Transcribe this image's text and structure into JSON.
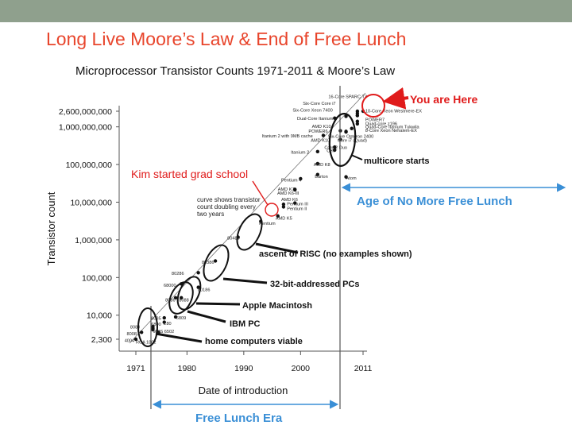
{
  "slide": {
    "title": "Long Live Moore’s Law & End of Free Lunch"
  },
  "chart_data": {
    "type": "scatter",
    "title": "Microprocessor Transistor Counts 1971-2011 & Moore’s Law",
    "xlabel": "Date of introduction",
    "ylabel": "Transistor count",
    "scale_y": "log",
    "xlim": [
      1971,
      2011
    ],
    "x_ticks": [
      "1971",
      "1980",
      "1990",
      "2000",
      "2011"
    ],
    "y_ticks": [
      {
        "label": "2,600,000,000",
        "value": 2600000000
      },
      {
        "label": "1,000,000,000",
        "value": 1000000000
      },
      {
        "label": "100,000,000",
        "value": 100000000
      },
      {
        "label": "10,000,000",
        "value": 10000000
      },
      {
        "label": "1,000,000",
        "value": 1000000
      },
      {
        "label": "100,000",
        "value": 100000
      },
      {
        "label": "10,000",
        "value": 10000
      },
      {
        "label": "2,300",
        "value": 2300
      }
    ],
    "trend_label": "curve shows transistor count doubling every two years",
    "points": [
      {
        "name": "4004",
        "x": 1971,
        "y": 2300
      },
      {
        "name": "8008",
        "x": 1972,
        "y": 3500
      },
      {
        "name": "8080",
        "x": 1974,
        "y": 4500
      },
      {
        "name": "RCA 1802",
        "x": 1974,
        "y": 5000
      },
      {
        "name": "6800",
        "x": 1974,
        "y": 4100
      },
      {
        "name": "8085",
        "x": 1976,
        "y": 6500
      },
      {
        "name": "Z80",
        "x": 1976,
        "y": 8500
      },
      {
        "name": "MOS 6502",
        "x": 1975,
        "y": 3510
      },
      {
        "name": "6809",
        "x": 1978,
        "y": 9000
      },
      {
        "name": "8086",
        "x": 1978,
        "y": 29000
      },
      {
        "name": "8088",
        "x": 1979,
        "y": 29000
      },
      {
        "name": "68000",
        "x": 1979,
        "y": 68000
      },
      {
        "name": "80186",
        "x": 1982,
        "y": 55000
      },
      {
        "name": "80286",
        "x": 1982,
        "y": 134000
      },
      {
        "name": "80386",
        "x": 1985,
        "y": 275000
      },
      {
        "name": "80486",
        "x": 1989,
        "y": 1180000
      },
      {
        "name": "Pentium",
        "x": 1993,
        "y": 3100000
      },
      {
        "name": "AMD K5",
        "x": 1996,
        "y": 4300000
      },
      {
        "name": "Pentium II",
        "x": 1997,
        "y": 7500000
      },
      {
        "name": "Pentium III",
        "x": 1999,
        "y": 9500000
      },
      {
        "name": "AMD K6",
        "x": 1997,
        "y": 8800000
      },
      {
        "name": "AMD K6-III",
        "x": 1999,
        "y": 21300000
      },
      {
        "name": "AMD K7",
        "x": 1999,
        "y": 22000000
      },
      {
        "name": "Pentium 4",
        "x": 2000,
        "y": 42000000
      },
      {
        "name": "Barton",
        "x": 2003,
        "y": 54300000
      },
      {
        "name": "Atom",
        "x": 2008,
        "y": 47000000
      },
      {
        "name": "AMD K8",
        "x": 2003,
        "y": 105900000
      },
      {
        "name": "Itanium 2",
        "x": 2003,
        "y": 220000000
      },
      {
        "name": "Cell",
        "x": 2006,
        "y": 241000000
      },
      {
        "name": "Core 2 Duo",
        "x": 2006,
        "y": 291000000
      },
      {
        "name": "Itanium 2 with 9MB cache",
        "x": 2004,
        "y": 592000000
      },
      {
        "name": "AMD K10",
        "x": 2007,
        "y": 463000000
      },
      {
        "name": "Core i7 (Quad)",
        "x": 2008,
        "y": 731000000
      },
      {
        "name": "POWER6",
        "x": 2007,
        "y": 789000000
      },
      {
        "name": "Six-Core Opteron 2400",
        "x": 2009,
        "y": 904000000
      },
      {
        "name": "AMD K10",
        "x": 2008,
        "y": 758000000
      },
      {
        "name": "Dual-Core Itanium 2",
        "x": 2006,
        "y": 1700000000
      },
      {
        "name": "Six-Core Xeon 7400",
        "x": 2008,
        "y": 1900000000
      },
      {
        "name": "Six-Core Core i7",
        "x": 2010,
        "y": 2000000000
      },
      {
        "name": "16-Core SPARC T3",
        "x": 2010,
        "y": 2600000000
      },
      {
        "name": "10-Core Xeon Westmere-EX",
        "x": 2011,
        "y": 2600000000
      },
      {
        "name": "POWER7",
        "x": 2010,
        "y": 1200000000
      },
      {
        "name": "Quad-core z196",
        "x": 2010,
        "y": 1400000000
      },
      {
        "name": "Quad-Core Itanium Tukwila",
        "x": 2010,
        "y": 2000000000
      },
      {
        "name": "8-Core Xeon Nehalem-EX",
        "x": 2010,
        "y": 2300000000
      }
    ],
    "labels": [
      {
        "text": "4004",
        "x": 1969.0,
        "y": 2200
      },
      {
        "text": "8008",
        "x": 1969.4,
        "y": 3300
      },
      {
        "text": "8080",
        "x": 1970.0,
        "y": 5000
      },
      {
        "text": "RCA 1802",
        "x": 1971.0,
        "y": 2000
      },
      {
        "text": "MOS 6502",
        "x": 1974.0,
        "y": 3800
      },
      {
        "text": "6800",
        "x": 1973.7,
        "y": 6000
      },
      {
        "text": "8085",
        "x": 1973.7,
        "y": 8500
      },
      {
        "text": "Z80",
        "x": 1975.9,
        "y": 6200
      },
      {
        "text": "6809",
        "x": 1978.1,
        "y": 8800
      },
      {
        "text": "8086",
        "x": 1976.2,
        "y": 26000
      },
      {
        "text": "8088",
        "x": 1978.6,
        "y": 26000
      },
      {
        "text": "68000",
        "x": 1975.9,
        "y": 64000
      },
      {
        "text": "80186",
        "x": 1981.9,
        "y": 49000
      },
      {
        "text": "80286",
        "x": 1977.3,
        "y": 132000
      },
      {
        "text": "80386",
        "x": 1982.6,
        "y": 260000
      },
      {
        "text": "80486",
        "x": 1987.1,
        "y": 1150000
      },
      {
        "text": "Pentium",
        "x": 1992.7,
        "y": 2800000
      },
      {
        "text": "AMD K5",
        "x": 1995.6,
        "y": 3900000
      },
      {
        "text": "Pentium II",
        "x": 1997.6,
        "y": 7000000
      },
      {
        "text": "Pentium III",
        "x": 1997.6,
        "y": 9300000
      },
      {
        "text": "AMD K6",
        "x": 1996.6,
        "y": 12000000
      },
      {
        "text": "AMD K6-III",
        "x": 1995.9,
        "y": 17700000
      },
      {
        "text": "AMD K7",
        "x": 1996.0,
        "y": 23000000
      },
      {
        "text": "Pentium 4",
        "x": 1996.6,
        "y": 40000000
      },
      {
        "text": "Barton",
        "x": 2002.5,
        "y": 50000000
      },
      {
        "text": "Atom",
        "x": 2008.0,
        "y": 45000000
      },
      {
        "text": "AMD K8",
        "x": 2002.3,
        "y": 103000000
      },
      {
        "text": "Itanium 2",
        "x": 1998.3,
        "y": 220000000
      },
      {
        "text": "Core 2 Duo",
        "x": 2004.2,
        "y": 290000000
      },
      {
        "text": "Cell",
        "x": 2004.6,
        "y": 240000000
      },
      {
        "text": "AMD K10",
        "x": 2001.8,
        "y": 455000000
      },
      {
        "text": "Itanium 2 with 9MB cache",
        "x": 1993.2,
        "y": 592000000
      },
      {
        "text": "Core i7 (Quad)",
        "x": 2006.5,
        "y": 455000000
      },
      {
        "text": "Six-Core Opteron 2400",
        "x": 2004.8,
        "y": 580000000
      },
      {
        "text": "POWER6",
        "x": 2001.4,
        "y": 789000000
      },
      {
        "text": "AMD K10",
        "x": 2002.0,
        "y": 1060000000
      },
      {
        "text": "Dual-Core Itanium 2",
        "x": 1999.4,
        "y": 1700000000
      },
      {
        "text": "Six-Core Xeon 7400",
        "x": 1998.6,
        "y": 2900000000
      },
      {
        "text": "Six-Core Core i7",
        "x": 2000.4,
        "y": 4300000000
      },
      {
        "text": "16-Core SPARC T3",
        "x": 2004.9,
        "y": 6600000000
      },
      {
        "text": "10-Core Xeon Westmere-EX",
        "x": 2011.4,
        "y": 2700000000
      },
      {
        "text": "POWER7",
        "x": 2011.4,
        "y": 1600000000
      },
      {
        "text": "Quad-core z196",
        "x": 2011.4,
        "y": 1270000000
      },
      {
        "text": "Quad-Core Itanium Tukwila",
        "x": 2011.4,
        "y": 1030000000
      },
      {
        "text": "8-Core Xeon Nehalem-EX",
        "x": 2011.4,
        "y": 830000000
      }
    ],
    "annotations": [
      {
        "text": "You are Here",
        "color": "#e01b1b"
      },
      {
        "text": "multicore starts",
        "color": "#111111"
      },
      {
        "text": "Kim started grad school",
        "color": "#e01b1b"
      },
      {
        "text": "Age of No More Free Lunch",
        "color": "#3a8fd6"
      },
      {
        "text": "ascent of RISC (no examples shown)",
        "color": "#111111"
      },
      {
        "text": "32-bit-addressed PCs",
        "color": "#111111"
      },
      {
        "text": "Apple Macintosh",
        "color": "#111111"
      },
      {
        "text": "IBM PC",
        "color": "#111111"
      },
      {
        "text": "home computers viable",
        "color": "#111111"
      },
      {
        "text": "Free Lunch Era",
        "color": "#3a8fd6"
      }
    ],
    "colors": {
      "title_red": "#e8452c",
      "highlight_red": "#e01b1b",
      "era_blue": "#3a8fd6",
      "band": "#8fa08d"
    }
  }
}
